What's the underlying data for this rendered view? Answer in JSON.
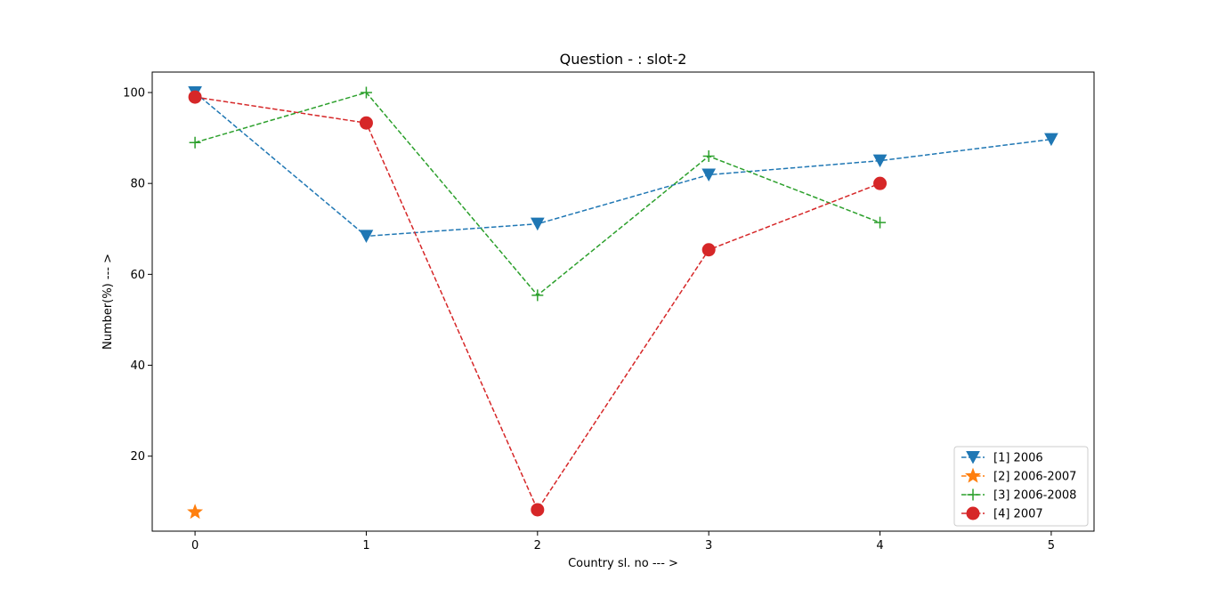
{
  "chart_data": {
    "type": "line",
    "title": "Question - : slot-2",
    "xlabel": "Country sl. no --- >",
    "ylabel": "Number(%) --- >",
    "xlim": [
      -0.25,
      5.25
    ],
    "ylim": [
      3.5,
      104.5
    ],
    "xticks": [
      0,
      1,
      2,
      3,
      4,
      5
    ],
    "yticks": [
      20,
      40,
      60,
      80,
      100
    ],
    "grid": false,
    "legend_position": "lower-right",
    "series": [
      {
        "name": "[1] 2006",
        "color": "#1f77b4",
        "marker": "triangle-down",
        "x": [
          0,
          1,
          2,
          3,
          4,
          5
        ],
        "values": [
          100,
          68.4,
          71.1,
          81.9,
          85,
          89.7
        ]
      },
      {
        "name": "[2] 2006-2007",
        "color": "#ff7f0e",
        "marker": "star",
        "x": [
          0
        ],
        "values": [
          7.7
        ]
      },
      {
        "name": "[3] 2006-2008",
        "color": "#2ca02c",
        "marker": "plus",
        "x": [
          0,
          1,
          2,
          3,
          4
        ],
        "values": [
          89,
          100,
          55.4,
          86,
          71.4
        ]
      },
      {
        "name": "[4] 2007",
        "color": "#d62728",
        "marker": "circle",
        "x": [
          0,
          1,
          2,
          3,
          4
        ],
        "values": [
          99,
          93.3,
          8.2,
          65.4,
          80
        ]
      }
    ]
  }
}
